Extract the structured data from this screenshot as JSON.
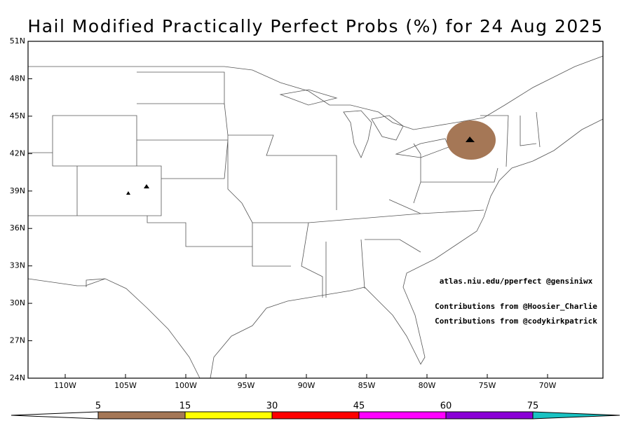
{
  "title": "Hail Modified Practically Perfect Probs (%) for 24 Aug 2025",
  "lat_labels": [
    "51N",
    "48N",
    "45N",
    "42N",
    "39N",
    "36N",
    "33N",
    "30N",
    "27N",
    "24N"
  ],
  "lon_labels": [
    "110W",
    "105W",
    "100W",
    "95W",
    "90W",
    "85W",
    "80W",
    "75W",
    "70W"
  ],
  "credits": [
    "atlas.niu.edu/pperfect @gensiniwx",
    "Contributions from @Hoosier_Charlie",
    "Contributions from @codykirkpatrick"
  ],
  "colorbar": {
    "labels": [
      "5",
      "15",
      "30",
      "45",
      "60",
      "75"
    ],
    "colors": [
      "#ffffff",
      "#a57756",
      "#ffff00",
      "#ff0000",
      "#ff00ff",
      "#8a00d6",
      "#19c2c2"
    ]
  }
}
